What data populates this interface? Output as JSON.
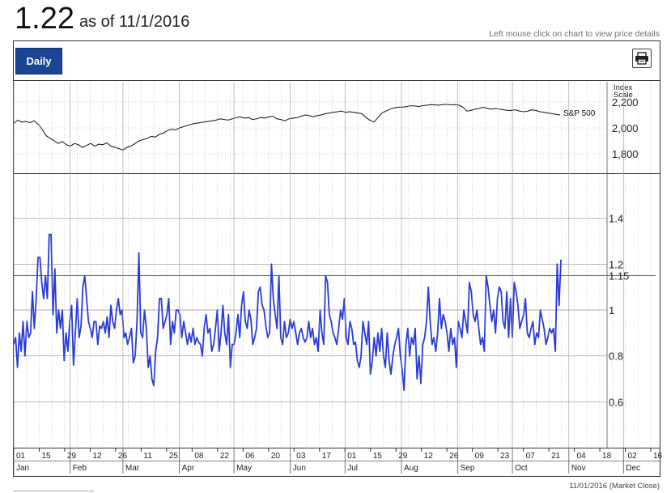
{
  "header": {
    "value": "1.22",
    "as_of": "as of 11/1/2016"
  },
  "hint": "Left mouse click on chart to view price details",
  "toolbar": {
    "daily_label": "Daily",
    "print_icon": "printer-icon"
  },
  "footer": {
    "date_text": "11/01/2016 (Market Close)"
  },
  "colors": {
    "main_line": "#2a3bd6",
    "threshold": "#d42a2a",
    "index_line": "#111111",
    "button": "#1a4595",
    "grid": "#b0b0b0"
  },
  "chart_data": [
    {
      "type": "line",
      "title": "",
      "axis_title": "Index Scale",
      "series_label": "S&P 500",
      "y_ticks": [
        1800,
        2000,
        2200
      ],
      "y_tick_labels": [
        "1,800",
        "2,000",
        "2,200"
      ],
      "ylim": [
        1750,
        2300
      ],
      "values": [
        2035,
        2060,
        2045,
        2050,
        2040,
        2055,
        2030,
        1990,
        1940,
        1920,
        1900,
        1880,
        1895,
        1870,
        1860,
        1880,
        1870,
        1850,
        1865,
        1880,
        1860,
        1875,
        1870,
        1885,
        1860,
        1850,
        1840,
        1830,
        1850,
        1860,
        1880,
        1900,
        1910,
        1920,
        1935,
        1930,
        1950,
        1960,
        1980,
        1990,
        1985,
        2000,
        2010,
        2020,
        2030,
        2035,
        2040,
        2045,
        2050,
        2055,
        2060,
        2070,
        2065,
        2060,
        2070,
        2080,
        2085,
        2075,
        2080,
        2065,
        2070,
        2080,
        2075,
        2085,
        2090,
        2070,
        2065,
        2055,
        2070,
        2075,
        2080,
        2090,
        2100,
        2095,
        2085,
        2095,
        2100,
        2110,
        2115,
        2120,
        2125,
        2130,
        2120,
        2125,
        2120,
        2115,
        2110,
        2080,
        2060,
        2045,
        2080,
        2115,
        2130,
        2145,
        2155,
        2160,
        2160,
        2165,
        2170,
        2170,
        2165,
        2172,
        2175,
        2180,
        2178,
        2175,
        2180,
        2182,
        2178,
        2180,
        2175,
        2160,
        2130,
        2135,
        2145,
        2150,
        2160,
        2150,
        2145,
        2150,
        2145,
        2140,
        2135,
        2135,
        2140,
        2130,
        2125,
        2130,
        2140,
        2135,
        2125,
        2120,
        2115,
        2110,
        2105,
        2100
      ]
    },
    {
      "type": "line",
      "title": "",
      "ylim": [
        0.4,
        1.6
      ],
      "y_ticks": [
        0.6,
        0.8,
        1,
        1.2,
        1.4
      ],
      "y_tick_labels": [
        "0.6",
        "0.8",
        "1",
        "1.2",
        "1.4"
      ],
      "threshold": {
        "value": 1.15,
        "label": "1.15"
      },
      "x_start": "2016-01-01",
      "x_end": "2016-12-20",
      "x_tick_labels": [
        "01",
        "15",
        "29",
        "12",
        "26",
        "11",
        "25",
        "08",
        "22",
        "06",
        "20",
        "03",
        "17",
        "01",
        "15",
        "29",
        "12",
        "26",
        "09",
        "23",
        "07",
        "21",
        "04",
        "18",
        "02",
        "16"
      ],
      "month_labels": [
        "Jan",
        "Feb",
        "Mar",
        "Apr",
        "May",
        "Jun",
        "Jul",
        "Aug",
        "Sep",
        "Oct",
        "Nov",
        "Dec"
      ],
      "values": [
        0.85,
        0.88,
        0.75,
        0.9,
        0.82,
        0.95,
        0.8,
        0.95,
        0.88,
        0.9,
        1.08,
        0.92,
        1.05,
        1.23,
        1.23,
        1.12,
        1.05,
        1.15,
        1.05,
        1.33,
        1.33,
        0.98,
        1.18,
        0.9,
        1.0,
        0.92,
        1.0,
        0.78,
        0.9,
        0.82,
        0.95,
        1.02,
        0.76,
        0.9,
        1.05,
        0.88,
        0.93,
        1.1,
        1.15,
        1.05,
        0.95,
        0.92,
        0.88,
        0.95,
        0.95,
        0.85,
        0.93,
        0.92,
        0.95,
        0.9,
        0.97,
        0.88,
        1.02,
        0.95,
        0.92,
        1.0,
        1.05,
        0.98,
        1.0,
        0.88,
        0.9,
        0.85,
        0.88,
        0.92,
        0.77,
        0.8,
        0.95,
        1.25,
        0.9,
        0.88,
        1.0,
        0.92,
        0.75,
        0.8,
        0.7,
        0.67,
        0.82,
        0.88,
        1.05,
        1.05,
        0.92,
        0.95,
        0.98,
        1.05,
        0.85,
        0.95,
        0.9,
        1.0,
        1.0,
        0.98,
        0.88,
        0.95,
        0.9,
        0.85,
        0.9,
        0.86,
        0.92,
        0.85,
        0.88,
        0.86,
        0.85,
        0.8,
        0.92,
        0.98,
        0.9,
        0.92,
        0.82,
        0.85,
        0.92,
        1.0,
        0.82,
        0.9,
        1.02,
        0.9,
        0.85,
        0.98,
        0.75,
        0.85,
        0.85,
        0.9,
        0.98,
        0.88,
        1.02,
        1.08,
        0.95,
        0.92,
        1.0,
        0.96,
        0.85,
        0.88,
        0.92,
        1.08,
        1.1,
        1.02,
        1.0,
        0.93,
        0.88,
        0.9,
        1.2,
        1.05,
        0.98,
        0.92,
        1.15,
        0.88,
        0.85,
        0.95,
        0.88,
        0.9,
        0.96,
        0.92,
        0.95,
        0.9,
        0.85,
        0.9,
        0.92,
        0.88,
        0.86,
        0.88,
        0.95,
        0.88,
        0.92,
        0.85,
        0.88,
        0.82,
        1.0,
        0.9,
        0.85,
        1.15,
        1.12,
        0.98,
        0.95,
        0.9,
        0.88,
        0.85,
        0.92,
        1.0,
        0.96,
        1.05,
        0.88,
        0.85,
        0.95,
        0.92,
        0.85,
        0.86,
        0.78,
        0.75,
        0.8,
        0.95,
        0.9,
        0.85,
        0.95,
        0.72,
        0.78,
        0.88,
        0.8,
        0.9,
        0.82,
        0.92,
        0.8,
        0.75,
        0.9,
        0.78,
        0.72,
        0.8,
        0.85,
        0.88,
        0.92,
        0.8,
        0.74,
        0.65,
        0.85,
        0.92,
        0.8,
        0.88,
        0.85,
        0.92,
        0.7,
        0.8,
        0.68,
        0.85,
        0.88,
        0.95,
        1.1,
        0.95,
        0.85,
        0.88,
        0.82,
        0.9,
        1.05,
        0.92,
        0.98,
        0.95,
        0.9,
        0.82,
        0.92,
        0.85,
        0.88,
        0.75,
        0.95,
        0.92,
        0.88,
        1.0,
        0.95,
        0.9,
        1.12,
        1.08,
        0.98,
        0.95,
        1.0,
        0.92,
        0.85,
        0.88,
        0.82,
        1.15,
        1.1,
        1.02,
        0.95,
        1.0,
        0.9,
        1.05,
        1.1,
        1.08,
        0.95,
        0.92,
        1.08,
        0.88,
        1.05,
        0.88,
        1.12,
        1.08,
        1.02,
        0.92,
        0.95,
        0.98,
        1.05,
        0.9,
        0.88,
        0.92,
        0.95,
        0.85,
        0.9,
        0.88,
        1.0,
        0.96,
        0.92,
        0.85,
        0.88,
        0.92,
        0.9,
        0.92,
        0.82,
        1.2,
        1.02,
        1.22
      ]
    }
  ]
}
